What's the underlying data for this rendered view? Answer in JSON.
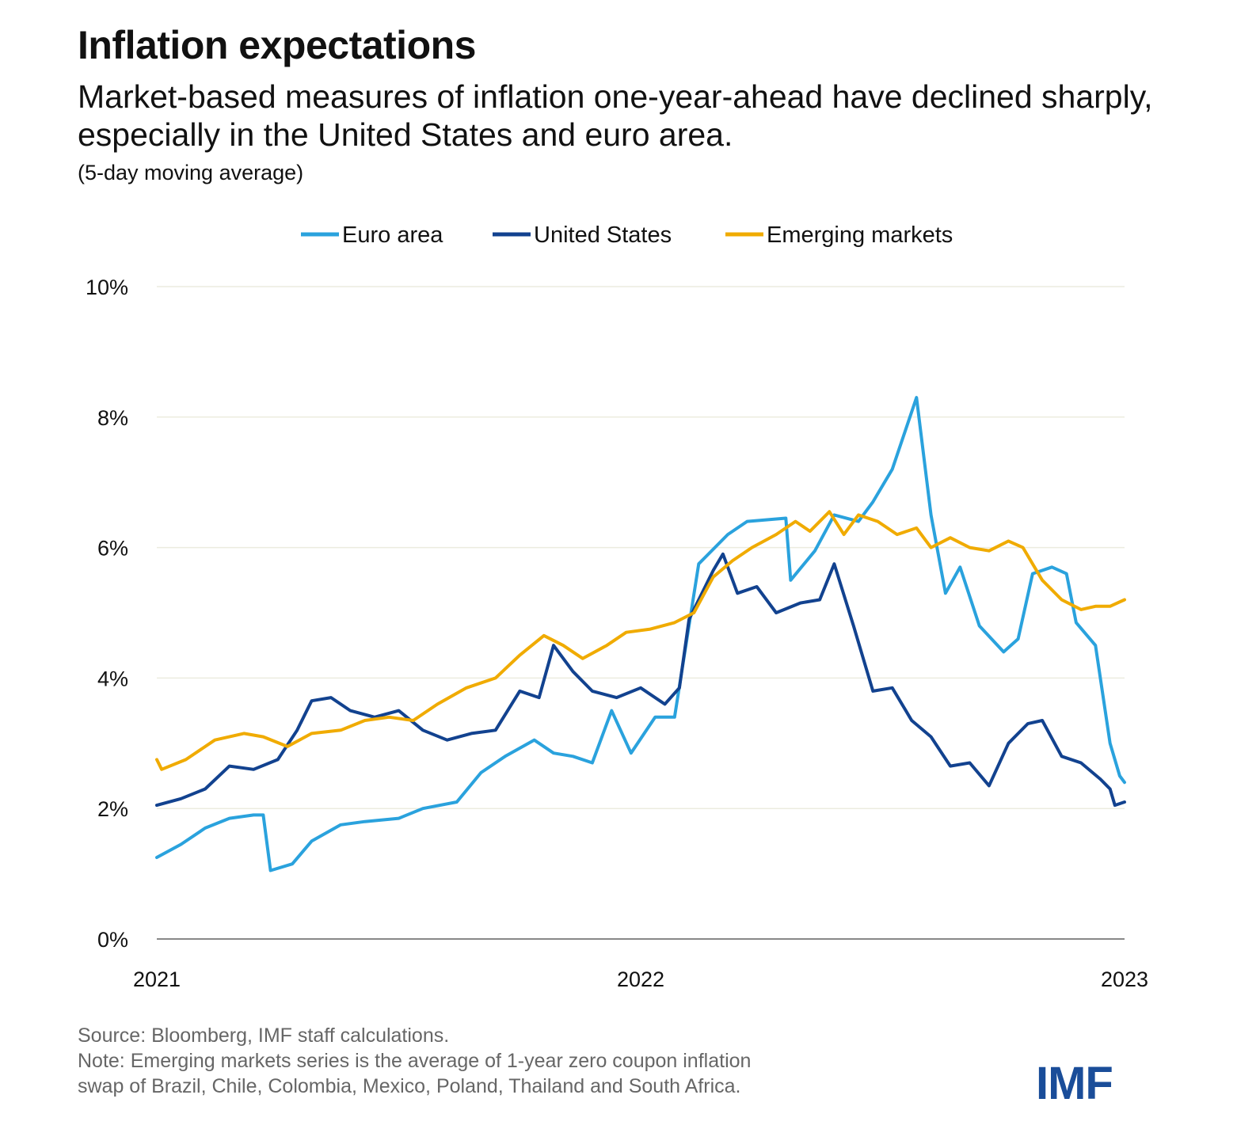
{
  "header": {
    "title": "Inflation expectations",
    "subtitle": "Market-based measures of inflation one-year-ahead have declined sharply, especially in the United States and euro area.",
    "note": "(5-day moving average)"
  },
  "footer": {
    "source": "Source: Bloomberg, IMF staff calculations.",
    "note_line1": "Note: Emerging markets series is the average of 1-year zero coupon inflation",
    "note_line2": "swap of Brazil, Chile, Colombia, Mexico, Poland, Thailand and South Africa.",
    "logo": "IMF"
  },
  "chart_data": {
    "type": "line",
    "title": "Inflation expectations",
    "xlabel": "",
    "ylabel": "",
    "ylim": [
      0,
      10
    ],
    "xlim": [
      2021.0,
      2023.0
    ],
    "y_ticks": [
      0,
      2,
      4,
      6,
      8,
      10
    ],
    "y_tick_labels": [
      "0%",
      "2%",
      "4%",
      "6%",
      "8%",
      "10%"
    ],
    "x_ticks": [
      2021,
      2022,
      2023
    ],
    "x_tick_labels": [
      "2021",
      "2022",
      "2023"
    ],
    "grid": "horizontal",
    "legend": "top",
    "series": [
      {
        "name": "Euro area",
        "color": "#2aa2dd",
        "points": [
          [
            2021.0,
            1.25
          ],
          [
            2021.05,
            1.45
          ],
          [
            2021.1,
            1.7
          ],
          [
            2021.15,
            1.85
          ],
          [
            2021.2,
            1.9
          ],
          [
            2021.22,
            1.9
          ],
          [
            2021.235,
            1.05
          ],
          [
            2021.28,
            1.15
          ],
          [
            2021.32,
            1.5
          ],
          [
            2021.38,
            1.75
          ],
          [
            2021.43,
            1.8
          ],
          [
            2021.5,
            1.85
          ],
          [
            2021.55,
            2.0
          ],
          [
            2021.62,
            2.1
          ],
          [
            2021.67,
            2.55
          ],
          [
            2021.72,
            2.8
          ],
          [
            2021.78,
            3.05
          ],
          [
            2021.82,
            2.85
          ],
          [
            2021.86,
            2.8
          ],
          [
            2021.9,
            2.7
          ],
          [
            2021.94,
            3.5
          ],
          [
            2021.98,
            2.85
          ],
          [
            2022.03,
            3.4
          ],
          [
            2022.07,
            3.4
          ],
          [
            2022.12,
            5.75
          ],
          [
            2022.18,
            6.2
          ],
          [
            2022.22,
            6.4
          ],
          [
            2022.3,
            6.45
          ],
          [
            2022.31,
            5.5
          ],
          [
            2022.36,
            5.95
          ],
          [
            2022.4,
            6.5
          ],
          [
            2022.45,
            6.4
          ],
          [
            2022.48,
            6.7
          ],
          [
            2022.52,
            7.2
          ],
          [
            2022.57,
            8.3
          ],
          [
            2022.6,
            6.5
          ],
          [
            2022.63,
            5.3
          ],
          [
            2022.66,
            5.7
          ],
          [
            2022.7,
            4.8
          ],
          [
            2022.75,
            4.4
          ],
          [
            2022.78,
            4.6
          ],
          [
            2022.81,
            5.6
          ],
          [
            2022.85,
            5.7
          ],
          [
            2022.88,
            5.6
          ],
          [
            2022.9,
            4.85
          ],
          [
            2022.94,
            4.5
          ],
          [
            2022.97,
            3.0
          ],
          [
            2022.99,
            2.5
          ],
          [
            2023.0,
            2.4
          ]
        ]
      },
      {
        "name": "United States",
        "color": "#12428f",
        "points": [
          [
            2021.0,
            2.05
          ],
          [
            2021.05,
            2.15
          ],
          [
            2021.1,
            2.3
          ],
          [
            2021.15,
            2.65
          ],
          [
            2021.2,
            2.6
          ],
          [
            2021.25,
            2.75
          ],
          [
            2021.29,
            3.2
          ],
          [
            2021.32,
            3.65
          ],
          [
            2021.36,
            3.7
          ],
          [
            2021.4,
            3.5
          ],
          [
            2021.45,
            3.4
          ],
          [
            2021.5,
            3.5
          ],
          [
            2021.55,
            3.2
          ],
          [
            2021.6,
            3.05
          ],
          [
            2021.65,
            3.15
          ],
          [
            2021.7,
            3.2
          ],
          [
            2021.75,
            3.8
          ],
          [
            2021.79,
            3.7
          ],
          [
            2021.82,
            4.5
          ],
          [
            2021.86,
            4.1
          ],
          [
            2021.9,
            3.8
          ],
          [
            2021.95,
            3.7
          ],
          [
            2022.0,
            3.85
          ],
          [
            2022.05,
            3.6
          ],
          [
            2022.08,
            3.85
          ],
          [
            2022.1,
            4.9
          ],
          [
            2022.15,
            5.65
          ],
          [
            2022.17,
            5.9
          ],
          [
            2022.2,
            5.3
          ],
          [
            2022.24,
            5.4
          ],
          [
            2022.28,
            5.0
          ],
          [
            2022.33,
            5.15
          ],
          [
            2022.37,
            5.2
          ],
          [
            2022.4,
            5.75
          ],
          [
            2022.44,
            4.8
          ],
          [
            2022.48,
            3.8
          ],
          [
            2022.52,
            3.85
          ],
          [
            2022.56,
            3.35
          ],
          [
            2022.6,
            3.1
          ],
          [
            2022.64,
            2.65
          ],
          [
            2022.68,
            2.7
          ],
          [
            2022.72,
            2.35
          ],
          [
            2022.76,
            3.0
          ],
          [
            2022.8,
            3.3
          ],
          [
            2022.83,
            3.35
          ],
          [
            2022.87,
            2.8
          ],
          [
            2022.91,
            2.7
          ],
          [
            2022.95,
            2.45
          ],
          [
            2022.97,
            2.3
          ],
          [
            2022.98,
            2.05
          ],
          [
            2023.0,
            2.1
          ]
        ]
      },
      {
        "name": "Emerging markets",
        "color": "#f0ab00",
        "points": [
          [
            2021.0,
            2.75
          ],
          [
            2021.01,
            2.6
          ],
          [
            2021.06,
            2.75
          ],
          [
            2021.12,
            3.05
          ],
          [
            2021.18,
            3.15
          ],
          [
            2021.22,
            3.1
          ],
          [
            2021.27,
            2.95
          ],
          [
            2021.32,
            3.15
          ],
          [
            2021.38,
            3.2
          ],
          [
            2021.43,
            3.35
          ],
          [
            2021.48,
            3.4
          ],
          [
            2021.53,
            3.35
          ],
          [
            2021.58,
            3.6
          ],
          [
            2021.64,
            3.85
          ],
          [
            2021.7,
            4.0
          ],
          [
            2021.75,
            4.35
          ],
          [
            2021.8,
            4.65
          ],
          [
            2021.84,
            4.5
          ],
          [
            2021.88,
            4.3
          ],
          [
            2021.93,
            4.5
          ],
          [
            2021.97,
            4.7
          ],
          [
            2022.02,
            4.75
          ],
          [
            2022.07,
            4.85
          ],
          [
            2022.11,
            5.0
          ],
          [
            2022.15,
            5.55
          ],
          [
            2022.19,
            5.8
          ],
          [
            2022.23,
            6.0
          ],
          [
            2022.28,
            6.2
          ],
          [
            2022.32,
            6.4
          ],
          [
            2022.35,
            6.25
          ],
          [
            2022.39,
            6.55
          ],
          [
            2022.42,
            6.2
          ],
          [
            2022.45,
            6.5
          ],
          [
            2022.49,
            6.4
          ],
          [
            2022.53,
            6.2
          ],
          [
            2022.57,
            6.3
          ],
          [
            2022.6,
            6.0
          ],
          [
            2022.64,
            6.15
          ],
          [
            2022.68,
            6.0
          ],
          [
            2022.72,
            5.95
          ],
          [
            2022.76,
            6.1
          ],
          [
            2022.79,
            6.0
          ],
          [
            2022.83,
            5.5
          ],
          [
            2022.87,
            5.2
          ],
          [
            2022.91,
            5.05
          ],
          [
            2022.94,
            5.1
          ],
          [
            2022.97,
            5.1
          ],
          [
            2023.0,
            5.2
          ]
        ]
      }
    ]
  }
}
